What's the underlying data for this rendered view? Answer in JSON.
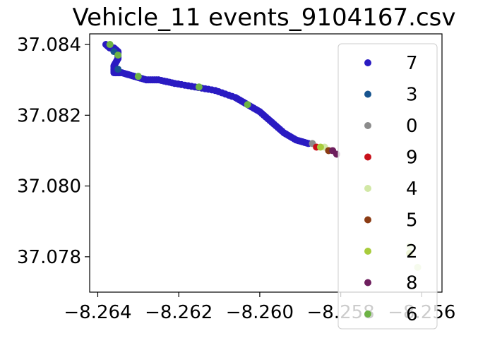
{
  "chart_data": {
    "type": "scatter",
    "title": "Vehicle_11 events_9104167.csv",
    "xlabel": "",
    "ylabel": "",
    "xlim": [
      -8.2642,
      -8.2555
    ],
    "ylim": [
      37.077,
      37.0843
    ],
    "x_ticks": [
      -8.264,
      -8.262,
      -8.26,
      -8.258,
      -8.256
    ],
    "x_tick_labels": [
      "−8.264",
      "−8.262",
      "−8.260",
      "−8.258",
      "−8.256"
    ],
    "y_ticks": [
      37.078,
      37.08,
      37.082,
      37.084
    ],
    "y_tick_labels": [
      "37.078",
      "37.080",
      "37.082",
      "37.084"
    ],
    "grid": false,
    "legend_position": "right",
    "series": [
      {
        "name": "7",
        "color": "#2a1bc2",
        "points": [
          [
            -8.2638,
            37.084
          ],
          [
            -8.2637,
            37.0839
          ],
          [
            -8.2636,
            37.0839
          ],
          [
            -8.2635,
            37.0838
          ],
          [
            -8.2635,
            37.0836
          ],
          [
            -8.2636,
            37.0834
          ],
          [
            -8.2636,
            37.0832
          ],
          [
            -8.2634,
            37.0832
          ],
          [
            -8.2631,
            37.0831
          ],
          [
            -8.2628,
            37.083
          ],
          [
            -8.2625,
            37.083
          ],
          [
            -8.2621,
            37.0829
          ],
          [
            -8.2616,
            37.0828
          ],
          [
            -8.2611,
            37.0827
          ],
          [
            -8.2606,
            37.0825
          ],
          [
            -8.2603,
            37.0823
          ],
          [
            -8.26,
            37.0821
          ],
          [
            -8.2597,
            37.0818
          ],
          [
            -8.2594,
            37.0815
          ],
          [
            -8.2591,
            37.0813
          ],
          [
            -8.2588,
            37.0812
          ]
        ]
      },
      {
        "name": "3",
        "color": "#17548f",
        "points": [
          [
            -8.2636,
            37.0838
          ],
          [
            -8.2635,
            37.0833
          ]
        ]
      },
      {
        "name": "0",
        "color": "#8c8c8c",
        "points": [
          [
            -8.2587,
            37.0812
          ]
        ]
      },
      {
        "name": "9",
        "color": "#c8101a",
        "points": [
          [
            -8.2586,
            37.0811
          ]
        ]
      },
      {
        "name": "4",
        "color": "#d2e8a6",
        "points": [
          [
            -8.2584,
            37.0811
          ],
          [
            -8.2563,
            37.0783
          ],
          [
            -8.2561,
            37.0777
          ]
        ]
      },
      {
        "name": "5",
        "color": "#8b3c14",
        "points": [
          [
            -8.2583,
            37.081
          ]
        ]
      },
      {
        "name": "2",
        "color": "#a8cc3c",
        "points": [
          [
            -8.2585,
            37.0811
          ],
          [
            -8.2563,
            37.0781
          ]
        ]
      },
      {
        "name": "8",
        "color": "#6e1f5e",
        "points": [
          [
            -8.2582,
            37.081
          ],
          [
            -8.2581,
            37.0809
          ]
        ]
      },
      {
        "name": "6",
        "color": "#6db345",
        "points": [
          [
            -8.2637,
            37.084
          ],
          [
            -8.2635,
            37.0837
          ],
          [
            -8.263,
            37.0831
          ],
          [
            -8.2615,
            37.0828
          ],
          [
            -8.2603,
            37.0823
          ]
        ]
      }
    ]
  }
}
